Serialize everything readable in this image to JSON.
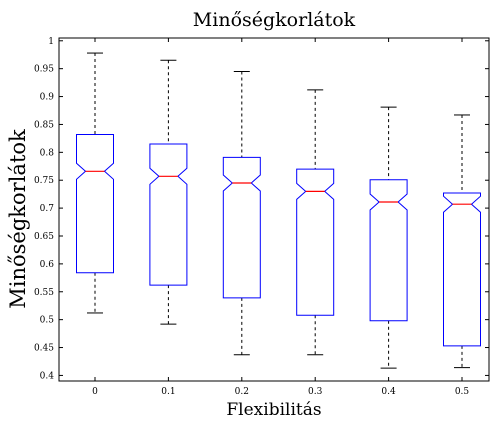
{
  "chart_data": {
    "type": "box",
    "title": "Minőségkorlátok",
    "xlabel": "Flexibilitás",
    "ylabel": "Minőségkorlátok",
    "categories": [
      "0",
      "0.1",
      "0.2",
      "0.3",
      "0.4",
      "0.5"
    ],
    "ylim": [
      0.39,
      1.005
    ],
    "yticks": [
      "0.4",
      "0.45",
      "0.5",
      "0.55",
      "0.6",
      "0.65",
      "0.7",
      "0.75",
      "0.8",
      "0.85",
      "0.9",
      "0.95",
      "1"
    ],
    "notched": true,
    "grid": false,
    "boxes": [
      {
        "category": "0",
        "whisker_low": 0.512,
        "q1": 0.584,
        "median": 0.766,
        "q3": 0.832,
        "whisker_high": 0.978
      },
      {
        "category": "0.1",
        "whisker_low": 0.492,
        "q1": 0.562,
        "median": 0.757,
        "q3": 0.815,
        "whisker_high": 0.965
      },
      {
        "category": "0.2",
        "whisker_low": 0.437,
        "q1": 0.539,
        "median": 0.745,
        "q3": 0.791,
        "whisker_high": 0.945
      },
      {
        "category": "0.3",
        "whisker_low": 0.437,
        "q1": 0.508,
        "median": 0.73,
        "q3": 0.77,
        "whisker_high": 0.912
      },
      {
        "category": "0.4",
        "whisker_low": 0.413,
        "q1": 0.498,
        "median": 0.711,
        "q3": 0.751,
        "whisker_high": 0.881
      },
      {
        "category": "0.5",
        "whisker_low": 0.414,
        "q1": 0.453,
        "median": 0.707,
        "q3": 0.727,
        "whisker_high": 0.867
      }
    ],
    "colors": {
      "box": "#0000ff",
      "median": "#ff0000",
      "whisker": "#000000",
      "axis": "#000000"
    }
  }
}
